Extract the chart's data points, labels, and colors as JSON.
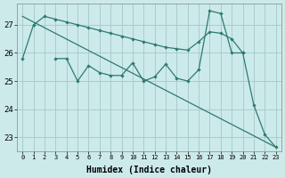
{
  "xlabel": "Humidex (Indice chaleur)",
  "bg_color": "#cdeaea",
  "grid_color": "#aacccc",
  "line_color": "#2d7b6e",
  "ylim": [
    22.5,
    27.75
  ],
  "xlim": [
    -0.5,
    23.5
  ],
  "yticks": [
    23,
    24,
    25,
    26,
    27
  ],
  "xticks": [
    0,
    1,
    2,
    3,
    4,
    5,
    6,
    7,
    8,
    9,
    10,
    11,
    12,
    13,
    14,
    15,
    16,
    17,
    18,
    19,
    20,
    21,
    22,
    23
  ],
  "line1_x": [
    0,
    1,
    2,
    3,
    4,
    5,
    6,
    7,
    8,
    9,
    10,
    11,
    12,
    13,
    14,
    15,
    16,
    17,
    18,
    19,
    20
  ],
  "line1_y": [
    25.8,
    27.0,
    27.3,
    27.2,
    27.1,
    27.0,
    26.9,
    26.8,
    26.7,
    26.6,
    26.5,
    26.4,
    26.3,
    26.2,
    26.15,
    26.1,
    26.4,
    26.75,
    26.7,
    26.5,
    26.0
  ],
  "line2_x": [
    0,
    23
  ],
  "line2_y": [
    27.3,
    22.65
  ],
  "line3_x": [
    3,
    4,
    5,
    6,
    7,
    8,
    9,
    10,
    11,
    12,
    13,
    14,
    15,
    16,
    17,
    18,
    19,
    20,
    21,
    22,
    23
  ],
  "line3_y": [
    25.8,
    25.8,
    25.0,
    25.55,
    25.3,
    25.2,
    25.2,
    25.65,
    25.0,
    25.15,
    25.6,
    25.1,
    25.0,
    25.4,
    27.5,
    27.4,
    26.0,
    26.0,
    24.15,
    23.1,
    22.65
  ]
}
